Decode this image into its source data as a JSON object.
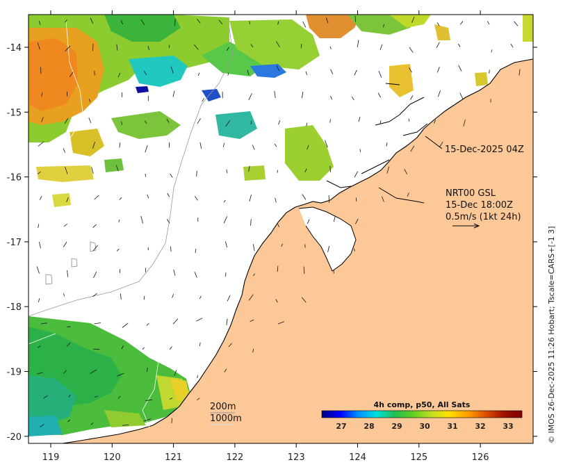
{
  "map": {
    "x_ticks": [
      "119",
      "120",
      "121",
      "122",
      "123",
      "124",
      "125",
      "126"
    ],
    "y_ticks": [
      "-14",
      "-15",
      "-16",
      "-17",
      "-18",
      "-19",
      "-20"
    ],
    "colors": {
      "land": "#fcc898",
      "ocean_no_data": "#ffffff",
      "coast": "#000000",
      "isobath": "#999999"
    }
  },
  "annotations": {
    "image_time": "15-Dec-2025 04Z",
    "current_product": "NRT00 GSL",
    "current_time": "15-Dec 18:00Z",
    "arrow_scale": "0.5m/s (1kt 24h)",
    "isobath_200": "200m",
    "isobath_1000": "1000m",
    "credit": "© IMOS 26-Dec-2025 11:26 Hobart; Tscale=CARS+[-1 3]"
  },
  "colorbar": {
    "title": "4h comp, p50, All Sats",
    "ticks": [
      "27",
      "28",
      "29",
      "30",
      "31",
      "32",
      "33"
    ],
    "stops": [
      "#00007f",
      "#0000ff",
      "#0090ff",
      "#00e0e0",
      "#20c050",
      "#60d020",
      "#c0e020",
      "#ffe000",
      "#ffa000",
      "#e05000",
      "#a01000",
      "#7f0000"
    ]
  }
}
